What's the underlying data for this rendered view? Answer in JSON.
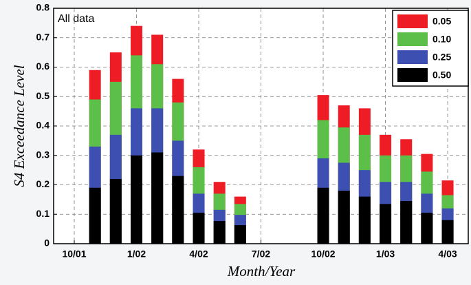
{
  "chart_data": {
    "type": "bar",
    "annotation": "All data",
    "xlabel": "Month/Year",
    "ylabel": "S4 Exceedance Level",
    "categories": [
      "10/01",
      null,
      null,
      "1/02",
      null,
      null,
      "4/02",
      null,
      null,
      "7/02",
      null,
      null,
      "10/02",
      null,
      null,
      "1/03",
      null,
      null,
      "4/03"
    ],
    "series": [
      {
        "name": "0.05",
        "color": "#ee1c24",
        "values": [
          null,
          0.59,
          0.65,
          0.74,
          0.71,
          0.56,
          0.32,
          0.21,
          0.16,
          null,
          null,
          null,
          0.505,
          0.47,
          0.46,
          0.37,
          0.355,
          0.305,
          0.215
        ]
      },
      {
        "name": "0.10",
        "color": "#5cbf4a",
        "values": [
          null,
          0.49,
          0.55,
          0.64,
          0.61,
          0.48,
          0.26,
          0.17,
          0.135,
          null,
          null,
          null,
          0.42,
          0.395,
          0.37,
          0.3,
          0.3,
          0.245,
          0.165
        ]
      },
      {
        "name": "0.25",
        "color": "#3d4fb0",
        "values": [
          null,
          0.33,
          0.37,
          0.46,
          0.46,
          0.35,
          0.17,
          0.115,
          0.098,
          null,
          null,
          null,
          0.29,
          0.275,
          0.25,
          0.21,
          0.21,
          0.17,
          0.12
        ]
      },
      {
        "name": "0.50",
        "color": "#000000",
        "values": [
          null,
          0.19,
          0.22,
          0.3,
          0.31,
          0.23,
          0.105,
          0.077,
          0.063,
          null,
          null,
          null,
          0.19,
          0.18,
          0.16,
          0.135,
          0.145,
          0.105,
          0.08
        ]
      }
    ],
    "ylim": [
      0,
      0.8
    ],
    "yticks": [
      0,
      0.1,
      0.2,
      0.3,
      0.4,
      0.5,
      0.6,
      0.7,
      0.8
    ],
    "grid": true,
    "legend": "upper right"
  }
}
